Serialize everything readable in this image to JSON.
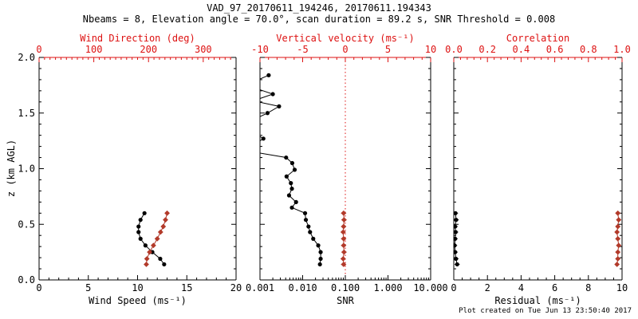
{
  "title": "VAD_97_20170611_194246, 20170611.194343",
  "subtitle": "Nbeams = 8, Elevation angle = 70.0°, scan duration = 89.2 s, SNR Threshold = 0.008",
  "footer": "Plot created on Tue Jun 13 23:50:40 2017",
  "colors": {
    "axis_red": "#dd1111",
    "marker_red": "#b23a2a",
    "black": "#000000",
    "background": "#ffffff"
  },
  "y_axis": {
    "label": "z (km AGL)",
    "lim": [
      0.0,
      2.0
    ],
    "ticks": [
      0.0,
      0.5,
      1.0,
      1.5,
      2.0
    ],
    "tick_labels": [
      "0.0",
      "0.5",
      "1.0",
      "1.5",
      "2.0"
    ],
    "minor_step": 0.1
  },
  "chart_data": [
    {
      "type": "line",
      "panel": "wind",
      "bottom_axis": {
        "label": "Wind Speed (ms⁻¹)",
        "scale": "linear",
        "lim": [
          0,
          20
        ],
        "ticks": [
          0,
          5,
          10,
          15,
          20
        ],
        "tick_labels": [
          "0",
          "5",
          "10",
          "15",
          "20"
        ],
        "minor_step": 1,
        "color": "black"
      },
      "top_axis": {
        "label": "Wind Direction (deg)",
        "scale": "linear",
        "lim": [
          0,
          360
        ],
        "ticks": [
          0,
          100,
          200,
          300
        ],
        "tick_labels": [
          "0",
          "100",
          "200",
          "300"
        ],
        "minor_step": 10,
        "color": "red"
      },
      "series": [
        {
          "name": "wind-speed",
          "axis": "bottom",
          "color": "black",
          "marker": "circle",
          "z": [
            0.6,
            0.54,
            0.48,
            0.43,
            0.37,
            0.31,
            0.25,
            0.19,
            0.14
          ],
          "values": [
            10.7,
            10.3,
            10.1,
            10.1,
            10.3,
            10.8,
            11.5,
            12.3,
            12.7
          ]
        },
        {
          "name": "wind-direction",
          "axis": "top",
          "color": "red",
          "marker": "diamond",
          "z": [
            0.6,
            0.54,
            0.48,
            0.43,
            0.37,
            0.31,
            0.25,
            0.19,
            0.14
          ],
          "values": [
            234,
            231,
            227,
            222,
            216,
            209,
            202,
            197,
            196
          ]
        }
      ]
    },
    {
      "type": "line",
      "panel": "snr",
      "bottom_axis": {
        "label": "SNR",
        "scale": "log",
        "lim": [
          0.001,
          10
        ],
        "ticks": [
          0.001,
          0.01,
          0.1,
          1,
          10
        ],
        "tick_labels": [
          "0.001",
          "0.010",
          "0.100",
          "1.000",
          "10.000"
        ],
        "color": "black"
      },
      "top_axis": {
        "label": "Vertical velocity (ms⁻¹)",
        "scale": "linear",
        "lim": [
          -10,
          10
        ],
        "ticks": [
          -10,
          -5,
          0,
          5,
          10
        ],
        "tick_labels": [
          "-10",
          "-5",
          "0",
          "5",
          "10"
        ],
        "minor_step": 1,
        "color": "red"
      },
      "refline": {
        "axis": "top",
        "value": 0,
        "style": "dotted",
        "color": "red"
      },
      "series": [
        {
          "name": "snr-profile",
          "axis": "bottom",
          "color": "black",
          "marker": "circle",
          "z": [
            1.84,
            1.78,
            1.73,
            1.67,
            1.61,
            1.56,
            1.5,
            1.44,
            1.38,
            1.33,
            1.27,
            1.21,
            1.15,
            1.1,
            1.05,
            0.99,
            0.93,
            0.87,
            0.82,
            0.76,
            0.7,
            0.65,
            0.6,
            0.54,
            0.48,
            0.43,
            0.37,
            0.31,
            0.25,
            0.19,
            0.14
          ],
          "values": [
            0.0016,
            0.0007,
            0.0007,
            0.002,
            0.0007,
            0.0028,
            0.0015,
            0.0007,
            0.0006,
            0.0007,
            0.0012,
            0.0007,
            0.0007,
            0.0041,
            0.0057,
            0.0065,
            0.0042,
            0.0053,
            0.0056,
            0.0048,
            0.007,
            0.0056,
            0.0114,
            0.0119,
            0.0137,
            0.0149,
            0.0177,
            0.0232,
            0.0264,
            0.0264,
            0.0254
          ]
        },
        {
          "name": "vertical-velocity",
          "axis": "top",
          "color": "red",
          "marker": "diamond",
          "xerr": 0.3,
          "z": [
            0.6,
            0.54,
            0.48,
            0.43,
            0.37,
            0.31,
            0.25,
            0.19,
            0.14
          ],
          "values": [
            -0.2,
            -0.15,
            -0.2,
            -0.25,
            -0.2,
            -0.2,
            -0.15,
            -0.25,
            -0.2
          ]
        }
      ]
    },
    {
      "type": "line",
      "panel": "residual",
      "bottom_axis": {
        "label": "Residual (ms⁻¹)",
        "scale": "linear",
        "lim": [
          0,
          10
        ],
        "ticks": [
          0,
          2,
          4,
          6,
          8,
          10
        ],
        "tick_labels": [
          "0",
          "2",
          "4",
          "6",
          "8",
          "10"
        ],
        "minor_step": 0.5,
        "color": "black"
      },
      "top_axis": {
        "label": "Correlation",
        "scale": "linear",
        "lim": [
          0,
          1
        ],
        "ticks": [
          0.0,
          0.2,
          0.4,
          0.6,
          0.8,
          1.0
        ],
        "tick_labels": [
          "0.0",
          "0.2",
          "0.4",
          "0.6",
          "0.8",
          "1.0"
        ],
        "minor_step": 0.04,
        "color": "red"
      },
      "series": [
        {
          "name": "residual",
          "axis": "bottom",
          "color": "black",
          "marker": "circle",
          "xerr": 0.15,
          "z": [
            0.6,
            0.54,
            0.48,
            0.43,
            0.37,
            0.31,
            0.25,
            0.19,
            0.14
          ],
          "values": [
            0.1,
            0.14,
            0.08,
            0.11,
            0.08,
            0.05,
            0.08,
            0.13,
            0.2
          ]
        },
        {
          "name": "correlation",
          "axis": "top",
          "color": "red",
          "marker": "diamond",
          "z": [
            0.6,
            0.54,
            0.48,
            0.43,
            0.37,
            0.31,
            0.25,
            0.19,
            0.14
          ],
          "values": [
            0.975,
            0.98,
            0.975,
            0.97,
            0.975,
            0.98,
            0.975,
            0.975,
            0.97
          ]
        }
      ]
    }
  ]
}
